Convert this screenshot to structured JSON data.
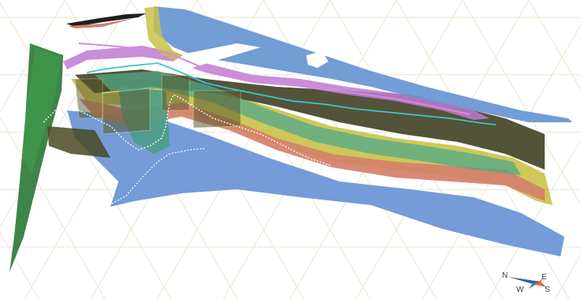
{
  "viewport": {
    "background": "#ffffff",
    "grid_color": "#e8e6cf"
  },
  "layers": {
    "top_blue": "#6a98d3",
    "purple_band": "#c07ad0",
    "olive": "#3b3b1e",
    "yellow": "#c8c247",
    "salmon": "#d5806a",
    "teal": "#52a88a",
    "dark_green": "#2f7a3a",
    "bottom_blue": "#6e96d6",
    "cyan_line": "#39c6cf",
    "white_line": "#ffffff"
  },
  "compass": {
    "north": "N",
    "east": "E",
    "west": "W",
    "south": "S",
    "north_color": "#2f5ea8",
    "south_color": "#e8672b"
  }
}
